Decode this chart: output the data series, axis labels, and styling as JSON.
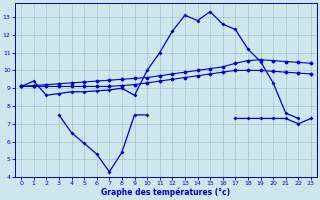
{
  "xlabel": "Graphe des températures (°c)",
  "background_color": "#cde8ed",
  "grid_color": "#a8cdd4",
  "line_color": "#0000cc",
  "hours": [
    0,
    1,
    2,
    3,
    4,
    5,
    6,
    7,
    8,
    9,
    10,
    11,
    12,
    13,
    14,
    15,
    16,
    17,
    18,
    19,
    20,
    21,
    22,
    23
  ],
  "temp_actual": [
    9.1,
    9.4,
    8.6,
    8.7,
    8.8,
    8.8,
    8.85,
    8.9,
    9.0,
    8.6,
    10.0,
    11.0,
    12.2,
    13.1,
    12.8,
    13.3,
    12.6,
    12.3,
    11.2,
    10.5,
    9.3,
    7.6,
    7.3,
    null
  ],
  "temp_avg_max": [
    9.1,
    9.15,
    9.2,
    9.25,
    9.3,
    9.35,
    9.4,
    9.45,
    9.5,
    9.55,
    9.6,
    9.7,
    9.8,
    9.9,
    10.0,
    10.1,
    10.2,
    10.4,
    10.55,
    10.6,
    10.55,
    10.5,
    10.45,
    10.4
  ],
  "temp_avg_min": [
    9.1,
    9.1,
    9.1,
    9.1,
    9.1,
    9.1,
    9.1,
    9.1,
    9.15,
    9.2,
    9.3,
    9.4,
    9.5,
    9.6,
    9.7,
    9.8,
    9.9,
    10.0,
    10.0,
    10.0,
    9.95,
    9.9,
    9.85,
    9.8
  ],
  "temp_low": [
    9.1,
    null,
    null,
    7.5,
    6.5,
    5.9,
    5.3,
    4.3,
    5.4,
    7.5,
    7.5,
    null,
    null,
    null,
    null,
    null,
    null,
    7.3,
    7.3,
    7.3,
    7.3,
    7.3,
    7.0,
    7.3
  ],
  "ylim": [
    4,
    13.8
  ],
  "xlim": [
    -0.5,
    23.5
  ],
  "yticks": [
    4,
    5,
    6,
    7,
    8,
    9,
    10,
    11,
    12,
    13
  ],
  "xticks": [
    0,
    1,
    2,
    3,
    4,
    5,
    6,
    7,
    8,
    9,
    10,
    11,
    12,
    13,
    14,
    15,
    16,
    17,
    18,
    19,
    20,
    21,
    22,
    23
  ]
}
